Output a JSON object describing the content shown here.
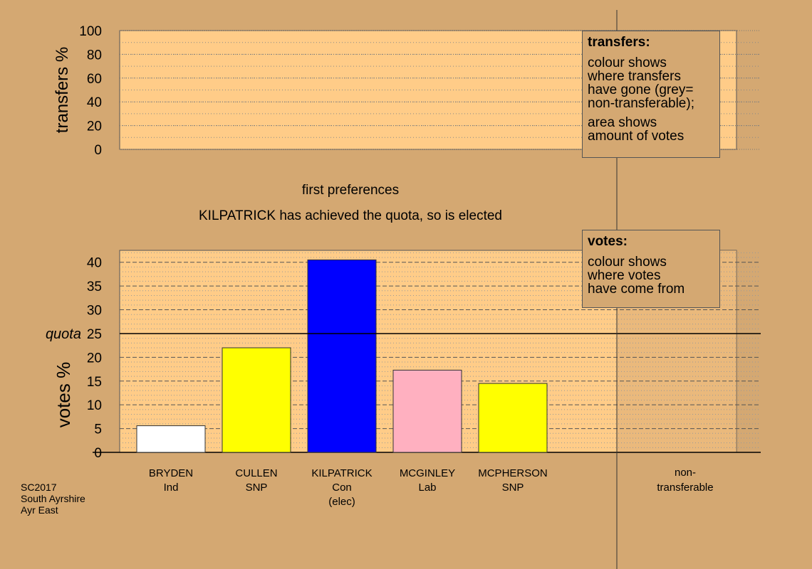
{
  "chart_data": {
    "type": "bar",
    "stage_title": "first preferences",
    "status": "KILPATRICK has achieved the quota, so is elected",
    "categories": [
      {
        "name": "BRYDEN",
        "party": "Ind",
        "note": ""
      },
      {
        "name": "CULLEN",
        "party": "SNP",
        "note": ""
      },
      {
        "name": "KILPATRICK",
        "party": "Con",
        "note": "(elec)"
      },
      {
        "name": "MCGINLEY",
        "party": "Lab",
        "note": ""
      },
      {
        "name": "MCPHERSON",
        "party": "SNP",
        "note": ""
      }
    ],
    "values": [
      5.6,
      22.0,
      40.5,
      17.3,
      14.5
    ],
    "bar_colors": [
      "#ffffff",
      "#ffff00",
      "#0000ff",
      "#ffb0c0",
      "#ffff00"
    ],
    "quota": 25,
    "quota_label": "quota",
    "nontransferable_label": [
      "non-",
      "transferable"
    ],
    "votes_axis": {
      "label": "votes %",
      "ylim": [
        0,
        42.5
      ],
      "ticks": [
        0,
        5,
        10,
        15,
        20,
        25,
        30,
        35,
        40
      ]
    },
    "transfers_axis": {
      "label": "transfers %",
      "ylim": [
        0,
        100
      ],
      "ticks": [
        0,
        20,
        40,
        60,
        80,
        100
      ]
    },
    "colors": {
      "background": "#d4a872",
      "plot_fill": "#ffcc88",
      "nontransferable_shade": "#d9aa72"
    }
  },
  "legends": {
    "transfers": {
      "title": "transfers:",
      "lines_a": [
        "colour shows",
        "where transfers",
        "have gone (grey=",
        "non-transferable);"
      ],
      "lines_b": [
        "area shows",
        "amount of votes"
      ]
    },
    "votes": {
      "title": "votes:",
      "lines": [
        "colour shows",
        "where votes",
        "have come from"
      ]
    }
  },
  "footer": {
    "election": "SC2017",
    "council": "South Ayrshire",
    "ward": "Ayr East"
  }
}
